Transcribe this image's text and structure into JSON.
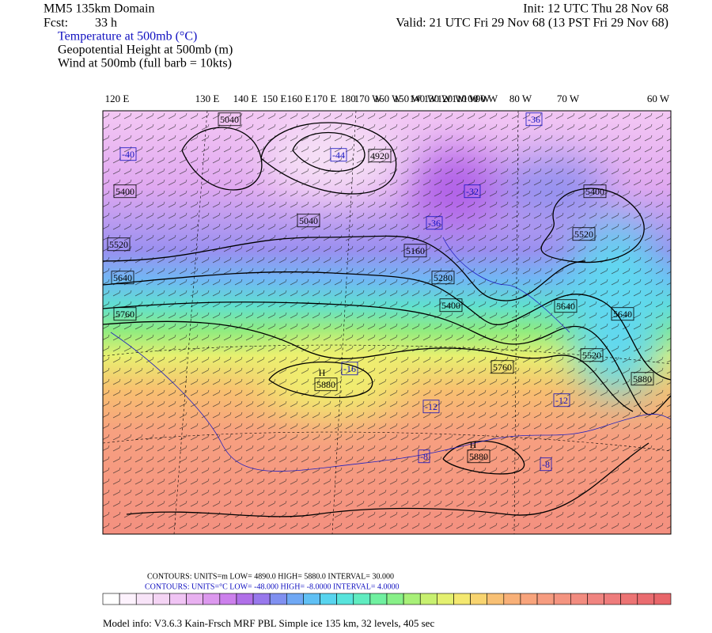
{
  "header": {
    "title": "MM5 135km Domain",
    "fcst_label": "Fcst:",
    "fcst_value": "33 h",
    "init": "Init: 12 UTC Thu 28 Nov 68",
    "valid": "Valid: 21 UTC Fri 29 Nov 68 (13 PST Fri 29 Nov 68)",
    "fields": [
      "Temperature at 500mb (°C)",
      "Geopotential Height at 500mb (m)",
      "Wind at 500mb (full barb = 10kts)"
    ]
  },
  "longitudes": [
    "120 E",
    "130 E",
    "140 E",
    "150 E",
    "160 E",
    "170 E",
    "180",
    "170 W",
    "160 W",
    "150 W",
    "140 W",
    "130 W",
    "120 W",
    "110 W",
    "100 W",
    "90 W",
    "80 W",
    "70 W",
    "60 W"
  ],
  "height_labels": [
    "5040",
    "4920",
    "5400",
    "5520",
    "5640",
    "5760",
    "5040",
    "5160",
    "5280",
    "5400",
    "5880",
    "5880",
    "5760",
    "5640",
    "5640",
    "5520",
    "5880",
    "5400",
    "5520"
  ],
  "highs": [
    "H",
    "H"
  ],
  "temp_labels": [
    "-44",
    "-32",
    "-36",
    "-16",
    "-12",
    "-8",
    "-12",
    "-8",
    "-36",
    "-40"
  ],
  "contour_info": {
    "height": "CONTOURS:  UNITS=m   LOW=   4890.0          HIGH=   5880.0          INTERVAL=    30.000",
    "temperature": "CONTOURS:  UNITS=°C  LOW=  -48.000        HIGH=  -8.0000        INTERVAL=    4.0000"
  },
  "model_info": "Model info: V3.6.3 Kain-Frsch MRF PBL     Simple ice   135 km,  32 levels,  405 sec"
}
